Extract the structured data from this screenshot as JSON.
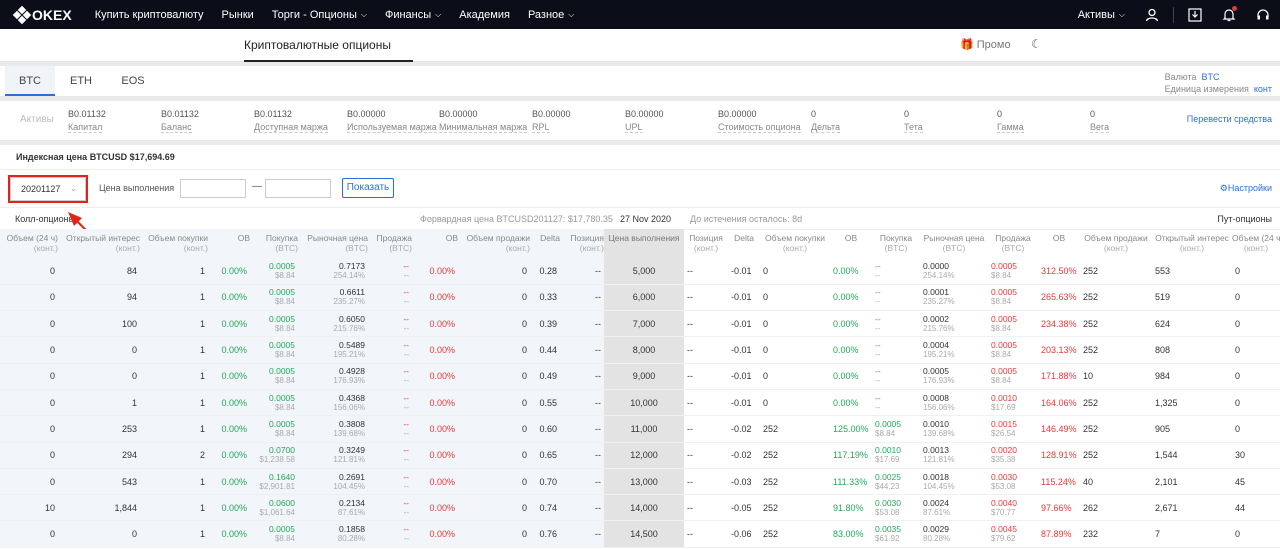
{
  "nav": {
    "logo": "OKEX",
    "items": [
      {
        "label": "Купить криптовалюту",
        "caret": false
      },
      {
        "label": "Рынки",
        "caret": false
      },
      {
        "label": "Торги - Опционы",
        "caret": true
      },
      {
        "label": "Финансы",
        "caret": true
      },
      {
        "label": "Академия",
        "caret": false
      },
      {
        "label": "Разное",
        "caret": true
      }
    ],
    "assets_label": "Активы"
  },
  "subheader": {
    "title": "Криптовалютные опционы",
    "promo": "Промо"
  },
  "tabs": [
    "BTC",
    "ETH",
    "EOS"
  ],
  "currency": {
    "label": "Валюта",
    "value": "BTC",
    "unit_label": "Единица измерения",
    "unit_value": "конт"
  },
  "assets": {
    "label": "Активы",
    "transfer": "Перевести средства",
    "cols": [
      {
        "value": "B0.01132",
        "label": "Капитал"
      },
      {
        "value": "B0.01132",
        "label": "Баланс"
      },
      {
        "value": "B0.01132",
        "label": "Доступная маржа"
      },
      {
        "value": "B0.00000",
        "label": "Используемая маржа"
      },
      {
        "value": "B0.00000",
        "label": "Минимальная маржа"
      },
      {
        "value": "B0.00000",
        "label": "RPL"
      },
      {
        "value": "B0.00000",
        "label": "UPL"
      },
      {
        "value": "B0.00000",
        "label": "Стоимость опциона"
      },
      {
        "value": "0",
        "label": "Дельта"
      },
      {
        "value": "0",
        "label": "Тета"
      },
      {
        "value": "0",
        "label": "Гамма"
      },
      {
        "value": "0",
        "label": "Вега"
      }
    ]
  },
  "index_price": "Индексная цена BTCUSD $17,694.69",
  "filter": {
    "date": "20201127",
    "strike_label": "Цена выполнения",
    "dash": "—",
    "show": "Показать",
    "settings": "Настройки"
  },
  "info": {
    "calls": "Колл-опционы",
    "forward": "Форвардная цена BTCUSD201127: $17,780.35",
    "date": "27 Nov 2020",
    "expiry": "До истечения осталось: 8d",
    "puts": "Пут-опционы"
  },
  "headers": {
    "call": [
      [
        "Объем (24 ч)",
        "(конт.)"
      ],
      [
        "Открытый интерес",
        "(конт.)"
      ],
      [
        "Объем покупки",
        "(конт.)"
      ],
      [
        "ОВ",
        ""
      ],
      [
        "Покупка",
        "(BTC)"
      ],
      [
        "Рыночная цена",
        "(BTC)"
      ],
      [
        "Продажа",
        "(BTC)"
      ],
      [
        "ОВ",
        ""
      ],
      [
        "Объем продажи",
        "(конт.)"
      ],
      [
        "Delta",
        ""
      ],
      [
        "Позиция",
        "(конт.)"
      ]
    ],
    "strike": "Цена выполнения",
    "put": [
      [
        "Позиция",
        "(конт.)"
      ],
      [
        "Delta",
        ""
      ],
      [
        "Объем покупки",
        "(конт.)"
      ],
      [
        "ОВ",
        ""
      ],
      [
        "Покупка",
        "(BTC)"
      ],
      [
        "Рыночная цена",
        "(BTC)"
      ],
      [
        "Продажа",
        "(BTC)"
      ],
      [
        "ОВ",
        ""
      ],
      [
        "Объем продажи",
        "(конт.)"
      ],
      [
        "Открытый интерес",
        "(конт.)"
      ],
      [
        "Объем (24 ч)",
        "(конт.)"
      ]
    ]
  },
  "rows": [
    {
      "c": [
        "0",
        "84",
        "1",
        "0.00%",
        "0.0005",
        "$8.84",
        "0.7173",
        "254.14%",
        "--",
        "--",
        "0.00%",
        "0",
        "0.28",
        "--"
      ],
      "k": "5,000",
      "p": [
        "--",
        "-0.01",
        "0",
        "0.00%",
        "--",
        "--",
        "0.0000",
        "254.14%",
        "0.0005",
        "$8.84",
        "312.50%",
        "252",
        "553",
        "0"
      ]
    },
    {
      "c": [
        "0",
        "94",
        "1",
        "0.00%",
        "0.0005",
        "$8.84",
        "0.6611",
        "235.27%",
        "--",
        "--",
        "0.00%",
        "0",
        "0.33",
        "--"
      ],
      "k": "6,000",
      "p": [
        "--",
        "-0.01",
        "0",
        "0.00%",
        "--",
        "--",
        "0.0001",
        "235.27%",
        "0.0005",
        "$8.84",
        "265.63%",
        "252",
        "519",
        "0"
      ]
    },
    {
      "c": [
        "0",
        "100",
        "1",
        "0.00%",
        "0.0005",
        "$8.84",
        "0.6050",
        "215.76%",
        "--",
        "--",
        "0.00%",
        "0",
        "0.39",
        "--"
      ],
      "k": "7,000",
      "p": [
        "--",
        "-0.01",
        "0",
        "0.00%",
        "--",
        "--",
        "0.0002",
        "215.76%",
        "0.0005",
        "$8.84",
        "234.38%",
        "252",
        "624",
        "0"
      ]
    },
    {
      "c": [
        "0",
        "0",
        "1",
        "0.00%",
        "0.0005",
        "$8.84",
        "0.5489",
        "195.21%",
        "--",
        "--",
        "0.00%",
        "0",
        "0.44",
        "--"
      ],
      "k": "8,000",
      "p": [
        "--",
        "-0.01",
        "0",
        "0.00%",
        "--",
        "--",
        "0.0004",
        "195.21%",
        "0.0005",
        "$8.84",
        "203.13%",
        "252",
        "808",
        "0"
      ]
    },
    {
      "c": [
        "0",
        "0",
        "1",
        "0.00%",
        "0.0005",
        "$8.84",
        "0.4928",
        "176.93%",
        "--",
        "--",
        "0.00%",
        "0",
        "0.49",
        "--"
      ],
      "k": "9,000",
      "p": [
        "--",
        "-0.01",
        "0",
        "0.00%",
        "--",
        "--",
        "0.0005",
        "176.93%",
        "0.0005",
        "$8.84",
        "171.88%",
        "10",
        "984",
        "0"
      ]
    },
    {
      "c": [
        "0",
        "1",
        "1",
        "0.00%",
        "0.0005",
        "$8.84",
        "0.4368",
        "156.06%",
        "--",
        "--",
        "0.00%",
        "0",
        "0.55",
        "--"
      ],
      "k": "10,000",
      "p": [
        "--",
        "-0.01",
        "0",
        "0.00%",
        "--",
        "--",
        "0.0008",
        "156.06%",
        "0.0010",
        "$17.69",
        "164.06%",
        "252",
        "1,325",
        "0"
      ]
    },
    {
      "c": [
        "0",
        "253",
        "1",
        "0.00%",
        "0.0005",
        "$8.84",
        "0.3808",
        "139.68%",
        "--",
        "--",
        "0.00%",
        "0",
        "0.60",
        "--"
      ],
      "k": "11,000",
      "p": [
        "--",
        "-0.02",
        "252",
        "125.00%",
        "0.0005",
        "$8.84",
        "0.0010",
        "139.68%",
        "0.0015",
        "$26.54",
        "146.49%",
        "252",
        "905",
        "0"
      ]
    },
    {
      "c": [
        "0",
        "294",
        "2",
        "0.00%",
        "0.0700",
        "$1,238.58",
        "0.3249",
        "121.81%",
        "--",
        "--",
        "0.00%",
        "0",
        "0.65",
        "--"
      ],
      "k": "12,000",
      "p": [
        "--",
        "-0.02",
        "252",
        "117.19%",
        "0.0010",
        "$17.69",
        "0.0013",
        "121.81%",
        "0.0020",
        "$35.38",
        "128.91%",
        "252",
        "1,544",
        "30"
      ]
    },
    {
      "c": [
        "0",
        "543",
        "1",
        "0.00%",
        "0.1640",
        "$2,901.81",
        "0.2691",
        "104.45%",
        "--",
        "--",
        "0.00%",
        "0",
        "0.70",
        "--"
      ],
      "k": "13,000",
      "p": [
        "--",
        "-0.03",
        "252",
        "111.33%",
        "0.0025",
        "$44.23",
        "0.0018",
        "104.45%",
        "0.0030",
        "$53.08",
        "115.24%",
        "40",
        "2,101",
        "45"
      ]
    },
    {
      "c": [
        "10",
        "1,844",
        "1",
        "0.00%",
        "0.0600",
        "$1,061.64",
        "0.2134",
        "87.61%",
        "--",
        "--",
        "0.00%",
        "0",
        "0.74",
        "--"
      ],
      "k": "14,000",
      "p": [
        "--",
        "-0.05",
        "252",
        "91.80%",
        "0.0030",
        "$53.08",
        "0.0024",
        "87.61%",
        "0.0040",
        "$70.77",
        "97.66%",
        "262",
        "2,671",
        "44"
      ]
    },
    {
      "c": [
        "0",
        "0",
        "1",
        "0.00%",
        "0.0005",
        "$8.84",
        "0.1858",
        "80.28%",
        "--",
        "--",
        "0.00%",
        "0",
        "0.76",
        "--"
      ],
      "k": "14,500",
      "p": [
        "--",
        "-0.06",
        "252",
        "83.00%",
        "0.0035",
        "$61.92",
        "0.0029",
        "80.28%",
        "0.0045",
        "$79.62",
        "87.89%",
        "232",
        "7",
        "0"
      ]
    }
  ],
  "colors": {
    "accent": "#2d6fd6",
    "green": "#23a85a",
    "red": "#e23b3b",
    "highlight": "#e2231a"
  }
}
